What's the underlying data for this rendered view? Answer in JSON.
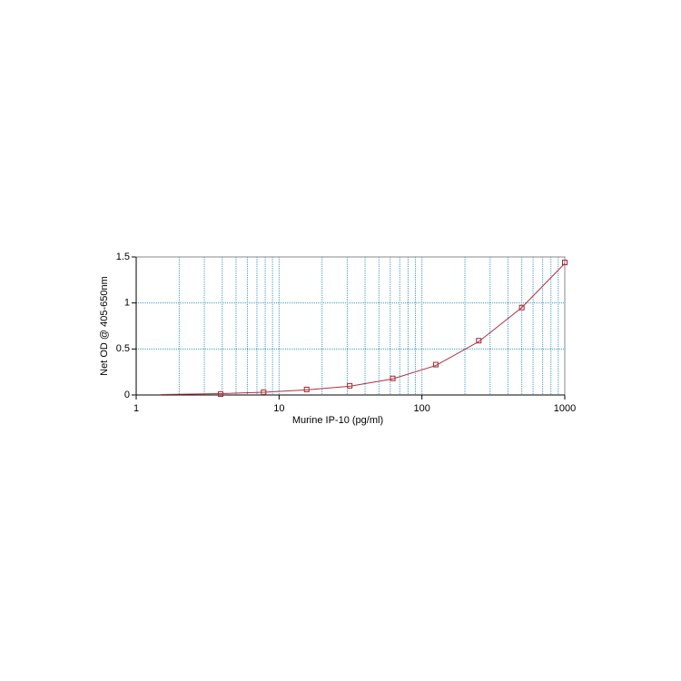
{
  "chart_data": {
    "type": "scatter",
    "x_label": "Murine IP-10 (pg/ml)",
    "y_label": "Net OD @ 405-650nm",
    "x_log": true,
    "xlim": [
      1,
      1000
    ],
    "xticks": [
      1,
      10,
      100,
      1000
    ],
    "x_minor_grid": [
      2,
      3,
      4,
      5,
      6,
      7,
      8,
      9,
      20,
      30,
      40,
      50,
      60,
      70,
      80,
      90,
      200,
      300,
      400,
      500,
      600,
      700,
      800,
      900
    ],
    "ylim": [
      0,
      1.5
    ],
    "yticks": [
      0,
      0.5,
      1,
      1.5
    ],
    "grid": true,
    "grid_color": "#3a9ac8",
    "series": [
      {
        "kind": "points",
        "color": "#a3262e",
        "x": [
          3.9,
          7.8,
          15.6,
          31.25,
          62.5,
          125,
          250,
          500,
          1000
        ],
        "values": [
          0.01,
          0.03,
          0.06,
          0.1,
          0.18,
          0.33,
          0.59,
          0.95,
          1.44
        ]
      },
      {
        "kind": "curve",
        "color": "#b0303a",
        "x": [
          1.5,
          3.9,
          7.8,
          15.6,
          31.25,
          62.5,
          125,
          250,
          500,
          1000
        ],
        "values": [
          0.005,
          0.015,
          0.03,
          0.055,
          0.095,
          0.175,
          0.32,
          0.58,
          0.95,
          1.43
        ]
      }
    ]
  }
}
